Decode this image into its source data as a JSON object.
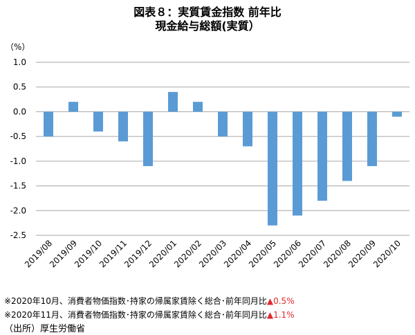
{
  "chart_data": {
    "type": "bar",
    "title": "図表８：実質賃金指数 前年比",
    "subtitle": "現金給与総額(実質）",
    "ylabel": "（%）",
    "xlabel": "",
    "ylim": [
      -2.5,
      1.0
    ],
    "yticks": [
      "1.0",
      "0.5",
      "0.0",
      "-0.5",
      "-1.0",
      "-1.5",
      "-2.0",
      "-2.5"
    ],
    "ytick_values": [
      1.0,
      0.5,
      0.0,
      -0.5,
      -1.0,
      -1.5,
      -2.0,
      -2.5
    ],
    "grid": true,
    "bar_color": "#5b9bd5",
    "categories": [
      "2019/08",
      "2019/09",
      "2019/10",
      "2019/11",
      "2019/12",
      "2020/01",
      "2020/02",
      "2020/03",
      "2020/04",
      "2020/05",
      "2020/06",
      "2020/07",
      "2020/08",
      "2020/09",
      "2020/10"
    ],
    "values": [
      -0.5,
      0.2,
      -0.4,
      -0.6,
      -1.1,
      0.4,
      0.2,
      -0.5,
      -0.7,
      -2.3,
      -2.1,
      -1.8,
      -1.4,
      -1.1,
      -0.1
    ]
  },
  "notes": [
    {
      "text": "※2020年10月、消費者物価指数･持家の帰属家賃除く総合･前年同月比",
      "value": "▲0.5%"
    },
    {
      "text": "※2020年11月、消費者物価指数･持家の帰属家賃除く総合･前年同月比",
      "value": "▲1.1%"
    }
  ],
  "source": "（出所）厚生労働省"
}
